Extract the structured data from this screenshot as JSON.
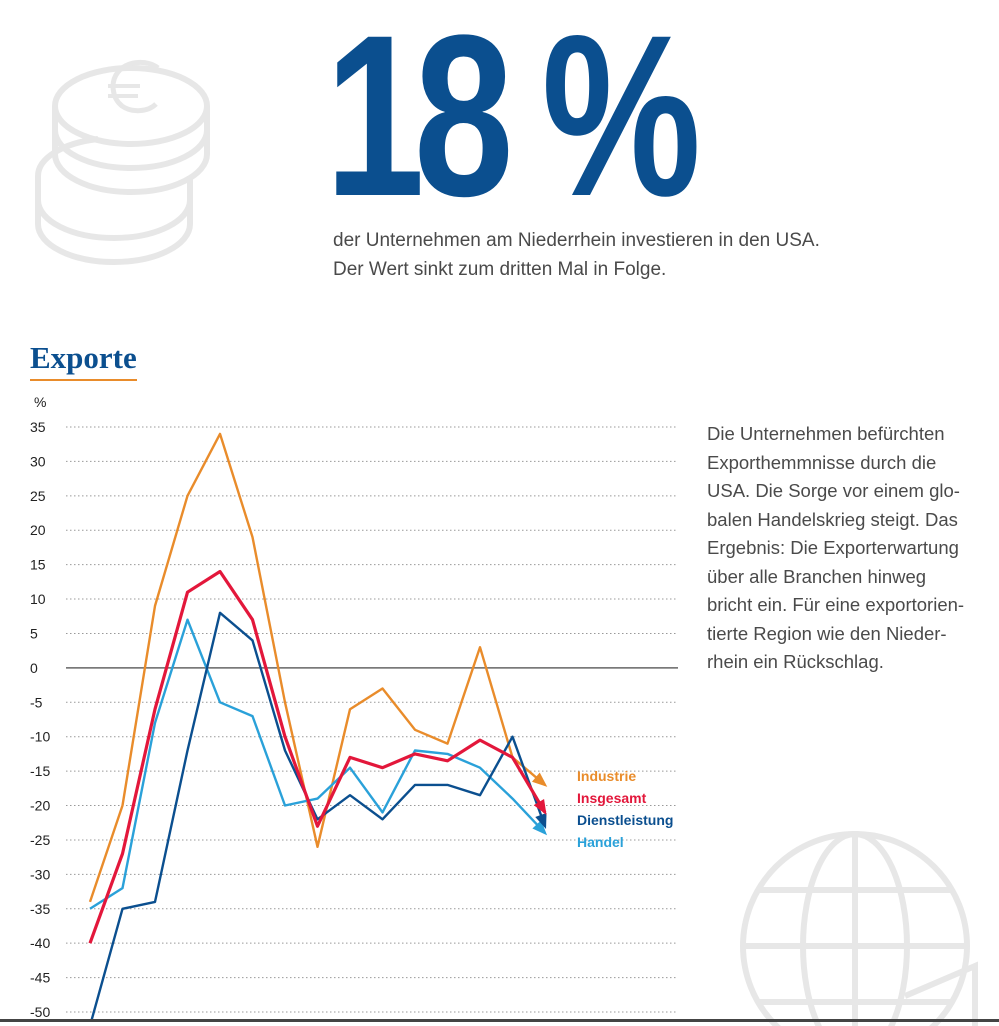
{
  "headline": {
    "value": "18",
    "unit": "%",
    "description": "der Unternehmen am Niederrhein investieren in den USA. Der Wert sinkt zum dritten Mal in Folge."
  },
  "icons": {
    "top_left": "euro-coins-icon",
    "bottom_right": "globe-icon"
  },
  "section": {
    "title": "Exporte"
  },
  "body_text": "Die Unternehmen befürchten\nExporthemmnisse durch die\nUSA. Die Sorge vor einem glo-\nbalen Handelskrieg steigt. Das\nErgebnis: Die Exporterwartung\nüber alle Branchen hinweg\nbricht ein. Für eine exportorien-\ntierte Region wie den Nieder-\nrhein ein Rückschlag.",
  "chart_data": {
    "type": "line",
    "title": "Exporte",
    "ylabel": "%",
    "ylim": [
      -50,
      35
    ],
    "yticks": [
      35,
      30,
      25,
      20,
      15,
      10,
      5,
      0,
      -5,
      -10,
      -15,
      -20,
      -25,
      -30,
      -35,
      -40,
      -45,
      -50
    ],
    "grid": true,
    "legend_position": "right-end",
    "series": [
      {
        "name": "Industrie",
        "color": "#e98c2b",
        "values": [
          -34,
          -20,
          9,
          25,
          34,
          19,
          -5,
          -26,
          -6,
          -3,
          -9,
          -11,
          3,
          -13,
          -17
        ]
      },
      {
        "name": "Insgesamt",
        "color": "#e3173b",
        "values": [
          -40,
          -27,
          -6,
          11,
          14,
          7,
          -10,
          -23,
          -13,
          -14.5,
          -12.5,
          -13.5,
          -10.5,
          -13,
          -21
        ]
      },
      {
        "name": "Dienstleistung",
        "color": "#0b4f8f",
        "values": [
          -52,
          -35,
          -34,
          -12,
          8,
          4,
          -12,
          -22,
          -18.5,
          -22,
          -17,
          -17,
          -18.5,
          -10,
          -23
        ]
      },
      {
        "name": "Handel",
        "color": "#2aa1d9",
        "values": [
          -35,
          -32,
          -8,
          7,
          -5,
          -7,
          -20,
          -19,
          -14.5,
          -21,
          -12,
          -12.5,
          -14.5,
          -19,
          -24
        ]
      }
    ]
  }
}
